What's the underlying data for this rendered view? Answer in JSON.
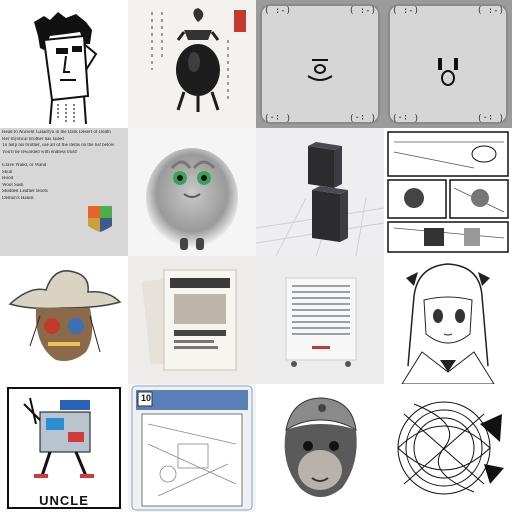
{
  "tiles": [
    {
      "name": "pixel-portrait-tile"
    },
    {
      "name": "incense-burner-tile"
    },
    {
      "name": "smiley-card-left-tile",
      "corner_text": "( :-)",
      "corner_text_rot": "( :-)"
    },
    {
      "name": "smiley-card-right-tile",
      "corner_text": "( :-)",
      "corner_text_rot": "( :-)"
    },
    {
      "name": "quest-text-tile",
      "lines": [
        "Head to Ancient Galadrya in the Dark Desert of Death",
        "Her mystical brother has failed",
        "To help his brother, use all of the items on the list below",
        "You'll be rewarded with endless trust!",
        "",
        "Grave Wand, or Wand",
        "Skull",
        "Hood",
        "Wool Sash",
        "Studded Leather Boots",
        "Demon's Hands"
      ],
      "shield_colors": [
        "#e8622a",
        "#4bb04a",
        "#c8a23a",
        "#3e5a8a"
      ]
    },
    {
      "name": "furry-creature-tile"
    },
    {
      "name": "dark-blocks-3d-tile"
    },
    {
      "name": "manga-page-tile"
    },
    {
      "name": "cowboy-skull-tile"
    },
    {
      "name": "book-mockup-tile"
    },
    {
      "name": "radiator-cabinet-tile"
    },
    {
      "name": "anime-girl-sketch-tile"
    },
    {
      "name": "uncle-robot-tile",
      "caption": "UNCLE"
    },
    {
      "name": "graded-comic-tile",
      "grade": "10"
    },
    {
      "name": "chimp-helmet-tile"
    },
    {
      "name": "abstract-line-art-tile"
    }
  ]
}
